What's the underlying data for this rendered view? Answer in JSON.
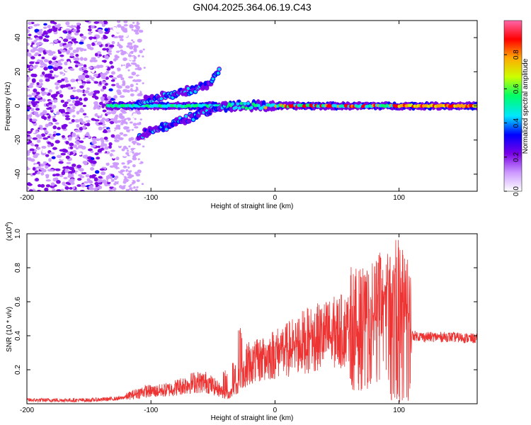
{
  "title": "GN04.2025.364.06.19.C43",
  "chart_data": [
    {
      "type": "heatmap",
      "title": "GN04.2025.364.06.19.C43",
      "xlabel": "Height of straight line (km)",
      "ylabel": "Frequency (Hz)",
      "xlim": [
        -200,
        163
      ],
      "ylim": [
        -50,
        50
      ],
      "xticks": [
        -200,
        -100,
        0,
        100
      ],
      "xtick_labels": [
        "-200",
        "-100",
        "0",
        "100"
      ],
      "yticks": [
        40,
        20,
        0,
        -20,
        -40
      ],
      "ytick_labels": [
        "40",
        "20",
        "0",
        "-20",
        "-40"
      ],
      "colorbar": {
        "label": "Normalized spectral amplitude",
        "range": [
          0,
          1
        ],
        "ticks": [
          0.0,
          0.2,
          0.4,
          0.6,
          0.8
        ],
        "tick_labels": [
          "0.0",
          "0.2",
          "0.4",
          "0.6",
          "0.8"
        ],
        "colors": [
          "#ffffff",
          "#cc99ff",
          "#7a00e6",
          "#0000ff",
          "#00e6ff",
          "#00ff66",
          "#ccff00",
          "#ffaa00",
          "#ff0000",
          "#ff66aa"
        ]
      },
      "features": [
        {
          "name": "broadband noise",
          "x_range": [
            -200,
            -118
          ],
          "freq_range": [
            -50,
            50
          ]
        },
        {
          "name": "main tone",
          "x_range": [
            -135,
            163
          ],
          "freq": 0
        },
        {
          "name": "upper branch",
          "points": [
            [
              -110,
              3
            ],
            [
              -80,
              7
            ],
            [
              -55,
              12
            ],
            [
              -45,
              20
            ]
          ]
        },
        {
          "name": "lower branch",
          "points": [
            [
              -110,
              -17
            ],
            [
              -80,
              -10
            ],
            [
              -55,
              -3
            ],
            [
              -40,
              0
            ]
          ]
        }
      ]
    },
    {
      "type": "line",
      "xlabel": "Height of straight line (km)",
      "ylabel": "SNR (10 * v/v)",
      "scale_label": "(x10",
      "scale_exp": "4",
      "scale_close": ")",
      "xlim": [
        -200,
        163
      ],
      "ylim": [
        0,
        1.0
      ],
      "xticks": [
        -200,
        -100,
        0,
        100
      ],
      "xtick_labels": [
        "-200",
        "-100",
        "0",
        "100"
      ],
      "yticks": [
        1.0,
        0.8,
        0.6,
        0.4,
        0.2
      ],
      "ytick_labels": [
        "1.0",
        "0.8",
        "0.6",
        "0.4",
        "0.2"
      ],
      "series": [
        {
          "name": "SNR",
          "color": "#ee3333",
          "envelope": {
            "x": [
              -200,
              -150,
              -125,
              -115,
              -105,
              -95,
              -85,
              -75,
              -65,
              -55,
              -45,
              -40,
              -35,
              -30,
              -25,
              -20,
              -10,
              0,
              10,
              20,
              30,
              40,
              50,
              60,
              70,
              80,
              85,
              90,
              95,
              100,
              105,
              110,
              120,
              140,
              163
            ],
            "y": [
              0.02,
              0.02,
              0.03,
              0.05,
              0.07,
              0.07,
              0.08,
              0.1,
              0.12,
              0.12,
              0.08,
              0.05,
              0.06,
              0.12,
              0.18,
              0.22,
              0.25,
              0.28,
              0.3,
              0.34,
              0.36,
              0.38,
              0.4,
              0.41,
              0.4,
              0.42,
              0.45,
              0.45,
              0.43,
              0.42,
              0.45,
              0.4,
              0.39,
              0.39,
              0.38
            ]
          },
          "spikes": [
            [
              -40,
              0.2
            ],
            [
              -33,
              0.25
            ],
            [
              -28,
              0.45
            ],
            [
              -22,
              0.38
            ],
            [
              -10,
              0.33
            ],
            [
              5,
              0.4
            ],
            [
              15,
              0.38
            ],
            [
              30,
              0.44
            ],
            [
              45,
              0.45
            ],
            [
              60,
              0.5
            ],
            [
              72,
              0.55
            ],
            [
              80,
              0.62
            ],
            [
              84,
              0.9
            ],
            [
              88,
              0.7
            ],
            [
              92,
              0.88
            ],
            [
              95,
              0.78
            ],
            [
              98,
              1.0
            ],
            [
              100,
              0.95
            ],
            [
              103,
              0.92
            ],
            [
              106,
              0.6
            ]
          ]
        }
      ]
    }
  ]
}
